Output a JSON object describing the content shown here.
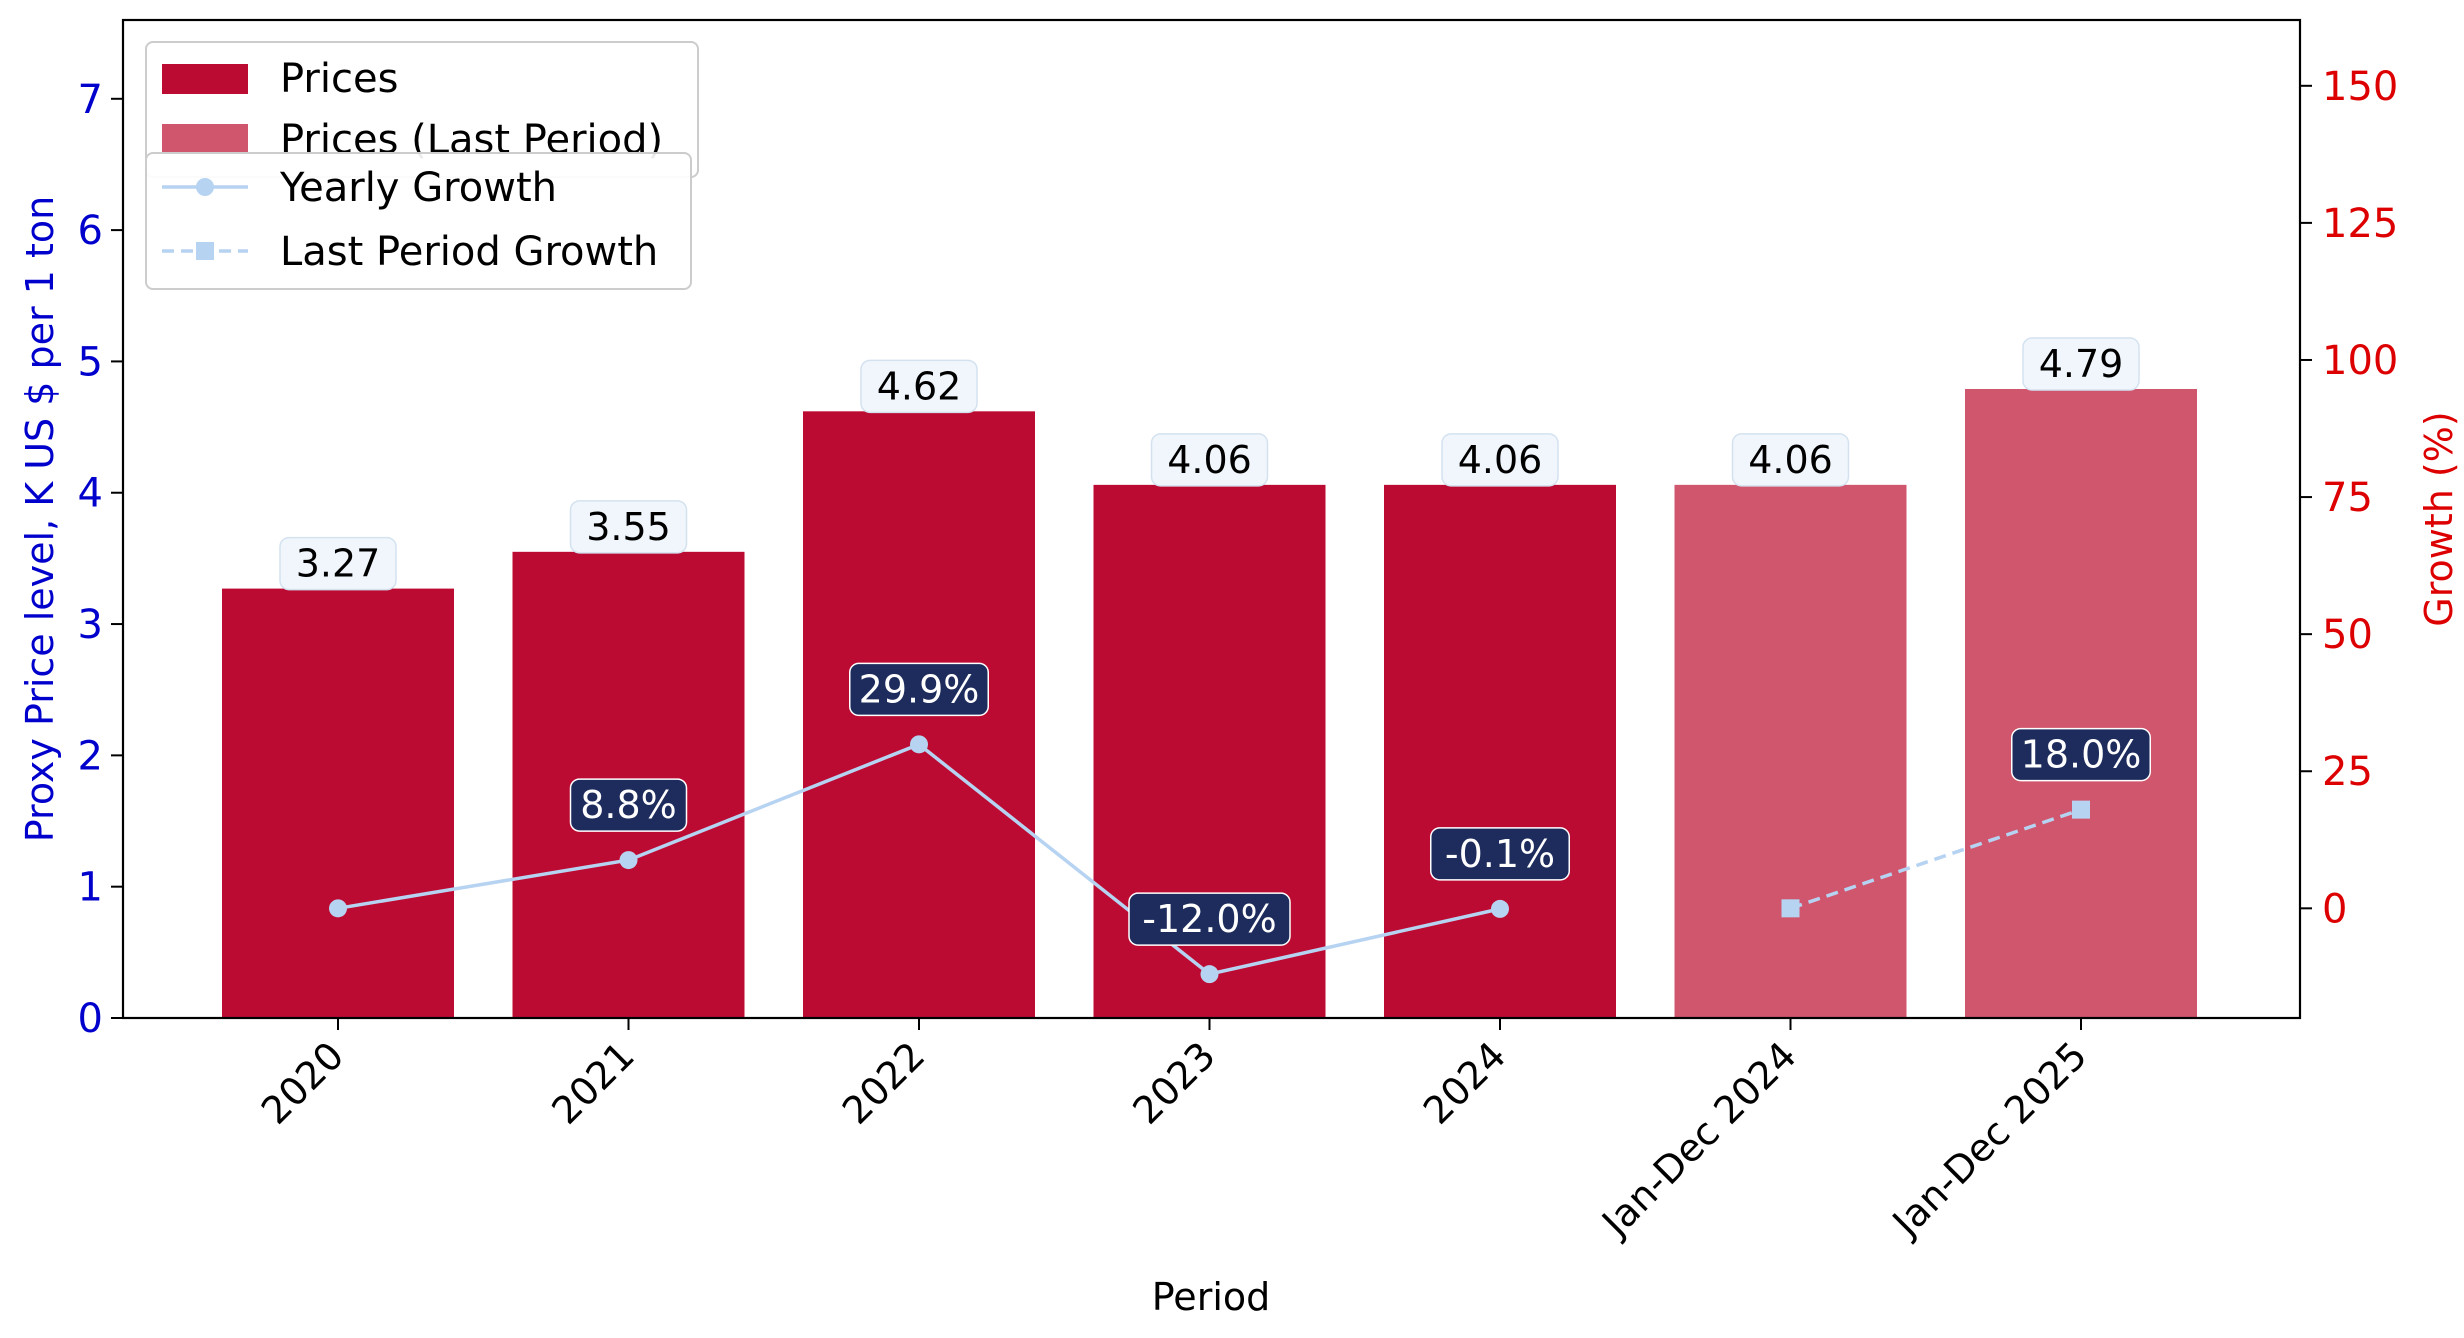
{
  "chart_data": {
    "type": "bar",
    "categories": [
      "2020",
      "2021",
      "2022",
      "2023",
      "2024",
      "Jan-Dec 2024",
      "Jan-Dec 2025"
    ],
    "xlabel": "Period",
    "ylabel_left": "Proxy Price level, K US $ per 1 ton",
    "ylabel_right": "Growth (%)",
    "ylim_left": [
      0,
      7.6
    ],
    "ylim_right": [
      -20,
      162
    ],
    "yticks_left": [
      0,
      1,
      2,
      3,
      4,
      5,
      6,
      7
    ],
    "yticks_right": [
      0,
      25,
      50,
      75,
      100,
      125,
      150
    ],
    "grid": false,
    "legend_placement": "top-left",
    "series": [
      {
        "name": "Prices",
        "kind": "bar",
        "axis": "left",
        "color": "#BC0B32",
        "values": [
          3.27,
          3.55,
          4.62,
          4.06,
          4.06,
          null,
          null
        ],
        "labels": [
          "3.27",
          "3.55",
          "4.62",
          "4.06",
          "4.06",
          "",
          ""
        ]
      },
      {
        "name": "Prices (Last Period)",
        "kind": "bar",
        "axis": "left",
        "color": "#D0566D",
        "values": [
          null,
          null,
          null,
          null,
          null,
          4.06,
          4.79
        ],
        "labels": [
          "",
          "",
          "",
          "",
          "",
          "4.06",
          "4.79"
        ]
      },
      {
        "name": "Yearly Growth",
        "kind": "line",
        "axis": "right",
        "color": "#B7D3F2",
        "marker": "circle",
        "values": [
          0,
          8.8,
          29.9,
          -12.0,
          -0.1,
          null,
          null
        ],
        "labels": [
          "",
          "8.8%",
          "29.9%",
          "-12.0%",
          "-0.1%",
          "",
          ""
        ]
      },
      {
        "name": "Last Period Growth",
        "kind": "line",
        "axis": "right",
        "color": "#B7D3F2",
        "marker": "square",
        "dashed": true,
        "values": [
          null,
          null,
          null,
          null,
          null,
          0,
          18.0
        ],
        "labels": [
          "",
          "",
          "",
          "",
          "",
          "",
          "18.0%"
        ]
      }
    ],
    "colors": {
      "left_axis": "#0000CC",
      "right_axis": "#DD0000",
      "value_label_bg": "#F0F6FB",
      "growth_label_bg": "#1D2C5C"
    }
  }
}
